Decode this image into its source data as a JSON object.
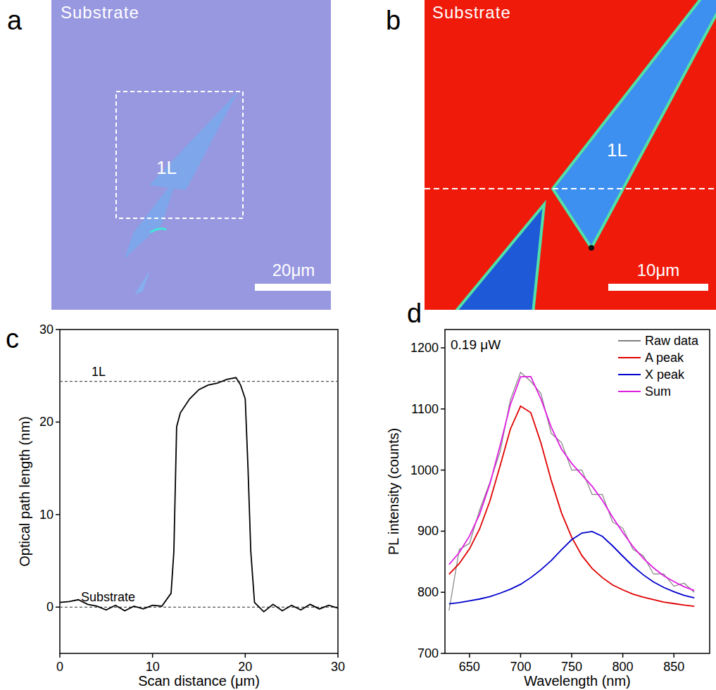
{
  "chart_data": [
    {
      "type": "image",
      "panel": "a",
      "labels": [
        "Substrate",
        "1L"
      ],
      "scale_bar": "20μm"
    },
    {
      "type": "image",
      "panel": "b",
      "labels": [
        "Substrate",
        "1L"
      ],
      "scale_bar": "10μm"
    },
    {
      "type": "line",
      "panel": "c",
      "xlabel": "Scan distance (μm)",
      "ylabel": "Optical path length (nm)",
      "x": [
        0,
        1,
        2,
        3,
        4,
        5,
        6,
        7,
        8,
        9,
        10,
        11,
        12,
        12.3,
        12.6,
        13,
        14,
        15,
        16,
        17,
        18,
        19,
        19.5,
        20,
        20.3,
        20.6,
        21,
        22,
        23,
        24,
        25,
        26,
        27,
        28,
        29,
        30
      ],
      "values": [
        0.5,
        0.6,
        0.8,
        0.3,
        0.1,
        -0.3,
        0.2,
        -0.4,
        0.1,
        -0.2,
        0.2,
        0.1,
        1.5,
        6,
        19.5,
        21,
        22.5,
        23.5,
        24,
        24.2,
        24.6,
        24.8,
        24,
        22.5,
        15,
        6,
        0.5,
        -0.5,
        0.3,
        -0.4,
        0.2,
        -0.3,
        0.3,
        -0.2,
        0.2,
        -0.1
      ],
      "color": "#000000",
      "reference_lines": [
        {
          "value": 24.4,
          "label": "1L"
        },
        {
          "value": 0,
          "label": "Substrate"
        }
      ],
      "xlim": [
        0,
        30
      ],
      "xticks": [
        0,
        10,
        20,
        30
      ],
      "ylim": [
        -5,
        30
      ],
      "yticks": [
        0,
        10,
        20,
        30
      ]
    },
    {
      "type": "line",
      "panel": "d",
      "xlabel": "Wavelength (nm)",
      "ylabel": "PL intensity (counts)",
      "annotation": "0.19 μW",
      "x": [
        630,
        640,
        650,
        660,
        670,
        680,
        690,
        700,
        710,
        720,
        730,
        740,
        750,
        760,
        770,
        780,
        790,
        800,
        810,
        820,
        830,
        840,
        850,
        860,
        870
      ],
      "series": [
        {
          "name": "Raw data",
          "color": "#808080",
          "values": [
            770,
            870,
            880,
            935,
            980,
            1030,
            1115,
            1160,
            1145,
            1125,
            1060,
            1045,
            1000,
            1000,
            960,
            960,
            915,
            905,
            870,
            860,
            830,
            830,
            810,
            815,
            800
          ]
        },
        {
          "name": "A peak",
          "color": "#e00000",
          "values": [
            829.5,
            847,
            871,
            904,
            949.5,
            1007,
            1067,
            1104.6,
            1094,
            1044,
            983,
            930,
            890,
            860,
            839,
            824,
            812,
            804,
            797,
            792,
            788,
            784,
            781.5,
            779,
            777
          ]
        },
        {
          "name": "X peak",
          "color": "#0000cc",
          "values": [
            781,
            783,
            786,
            789,
            793,
            798.5,
            805,
            813,
            824,
            837,
            852,
            869.5,
            886,
            897,
            899.5,
            891.5,
            876,
            859,
            842.6,
            828.6,
            817,
            808,
            801,
            795,
            791
          ]
        },
        {
          "name": "Sum",
          "color": "#e020e0",
          "values": [
            845.5,
            865,
            892,
            928,
            977.5,
            1040.5,
            1107,
            1152.6,
            1153,
            1116,
            1070,
            1034.5,
            1011,
            992,
            973.5,
            950.5,
            923,
            898,
            874.6,
            855.6,
            840,
            827,
            817.5,
            809,
            803
          ]
        }
      ],
      "legend": "top-right",
      "xlim": [
        626,
        885
      ],
      "xticks": [
        650,
        700,
        750,
        800,
        850
      ],
      "ylim": [
        700,
        1230
      ],
      "yticks": [
        700,
        800,
        900,
        1000,
        1100,
        1200
      ]
    }
  ]
}
